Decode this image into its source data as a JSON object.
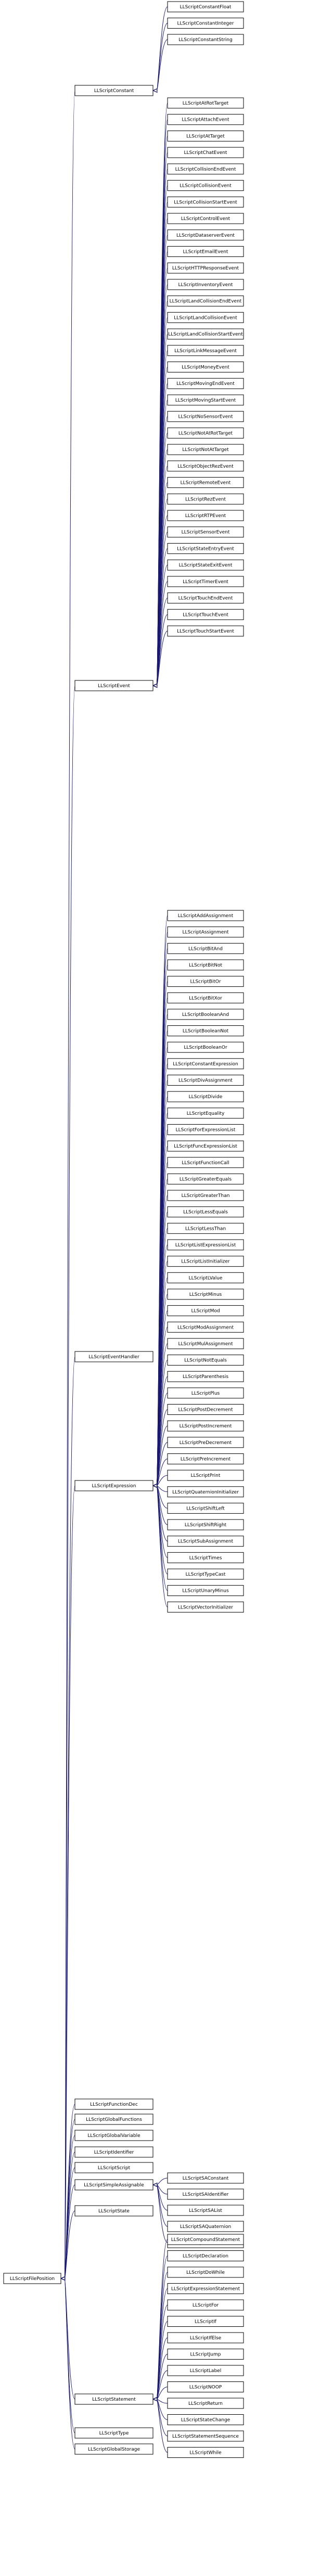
{
  "diagram": {
    "root": "LLScriptFilePosition",
    "groups": [
      {
        "parent": "LLScriptConstant",
        "children": [
          "LLScriptConstantFloat",
          "LLScriptConstantInteger",
          "LLScriptConstantString"
        ]
      },
      {
        "parent": "LLScriptEvent",
        "children": [
          "LLScriptAtRotTarget",
          "LLScriptAttachEvent",
          "LLScriptAtTarget",
          "LLScriptChatEvent",
          "LLScriptCollisionEndEvent",
          "LLScriptCollisionEvent",
          "LLScriptCollisionStartEvent",
          "LLScriptControlEvent",
          "LLScriptDataserverEvent",
          "LLScriptEmailEvent",
          "LLScriptHTTPResponseEvent",
          "LLScriptInventoryEvent",
          "LLScriptLandCollisionEndEvent",
          "LLScriptLandCollisionEvent",
          "LLScriptLandCollisionStartEvent",
          "LLScriptLinkMessageEvent",
          "LLScriptMoneyEvent",
          "LLScriptMovingEndEvent",
          "LLScriptMovingStartEvent",
          "LLScriptNoSensorEvent",
          "LLScriptNotAtRotTarget",
          "LLScriptNotAtTarget",
          "LLScriptObjectRezEvent",
          "LLScriptRemoteEvent",
          "LLScriptRezEvent",
          "LLScriptRTPEvent",
          "LLScriptSensorEvent",
          "LLScriptStateEntryEvent",
          "LLScriptStateExitEvent",
          "LLScriptTimerEvent",
          "LLScriptTouchEndEvent",
          "LLScriptTouchEvent",
          "LLScriptTouchStartEvent"
        ]
      },
      {
        "parent": "LLScriptEventHandler",
        "children": []
      },
      {
        "parent": "LLScriptExpression",
        "children": [
          "LLScriptAddAssignment",
          "LLScriptAssignment",
          "LLScriptBitAnd",
          "LLScriptBitNot",
          "LLScriptBitOr",
          "LLScriptBitXor",
          "LLScriptBooleanAnd",
          "LLScriptBooleanNot",
          "LLScriptBooleanOr",
          "LLScriptConstantExpression",
          "LLScriptDivAssignment",
          "LLScriptDivide",
          "LLScriptEquality",
          "LLScriptForExpressionList",
          "LLScriptFuncExpressionList",
          "LLScriptFunctionCall",
          "LLScriptGreaterEquals",
          "LLScriptGreaterThan",
          "LLScriptLessEquals",
          "LLScriptLessThan",
          "LLScriptListExpressionList",
          "LLScriptListInitializer",
          "LLScriptLValue",
          "LLScriptMinus",
          "LLScriptMod",
          "LLScriptModAssignment",
          "LLScriptMulAssignment",
          "LLScriptNotEquals",
          "LLScriptParenthesis",
          "LLScriptPlus",
          "LLScriptPostDecrement",
          "LLScriptPostIncrement",
          "LLScriptPreDecrement",
          "LLScriptPreIncrement",
          "LLScriptPrint",
          "LLScriptQuaternionInitializer",
          "LLScriptShiftLeft",
          "LLScriptShiftRight",
          "LLScriptSubAssignment",
          "LLScriptTimes",
          "LLScriptTypeCast",
          "LLScriptUnaryMinus",
          "LLScriptVectorInitializer"
        ]
      },
      {
        "parent": "LLScriptFunctionDec",
        "children": []
      },
      {
        "parent": "LLScriptGlobalFunctions",
        "children": []
      },
      {
        "parent": "LLScriptGlobalVariable",
        "children": []
      },
      {
        "parent": "LLScriptIdentifier",
        "children": []
      },
      {
        "parent": "LLScriptScript",
        "children": []
      },
      {
        "parent": "LLScriptSimpleAssignable",
        "children": [
          "LLScriptSAConstant",
          "LLScriptSAIdentifier",
          "LLScriptSAList",
          "LLScriptSAQuaternion",
          "LLScriptSAVector"
        ]
      },
      {
        "parent": "LLScriptState",
        "children": []
      },
      {
        "parent": "LLScriptStatement",
        "children": [
          "LLScriptCompoundStatement",
          "LLScriptDeclaration",
          "LLScriptDoWhile",
          "LLScriptExpressionStatement",
          "LLScriptFor",
          "LLScriptIf",
          "LLScriptIfElse",
          "LLScriptJump",
          "LLScriptLabel",
          "LLScriptNOOP",
          "LLScriptReturn",
          "LLScriptStateChange",
          "LLScriptStatementSequence",
          "LLScriptWhile"
        ]
      },
      {
        "parent": "LLScriptType",
        "children": []
      },
      {
        "parent": "LLScriptGlobalStorage",
        "children": []
      }
    ]
  }
}
